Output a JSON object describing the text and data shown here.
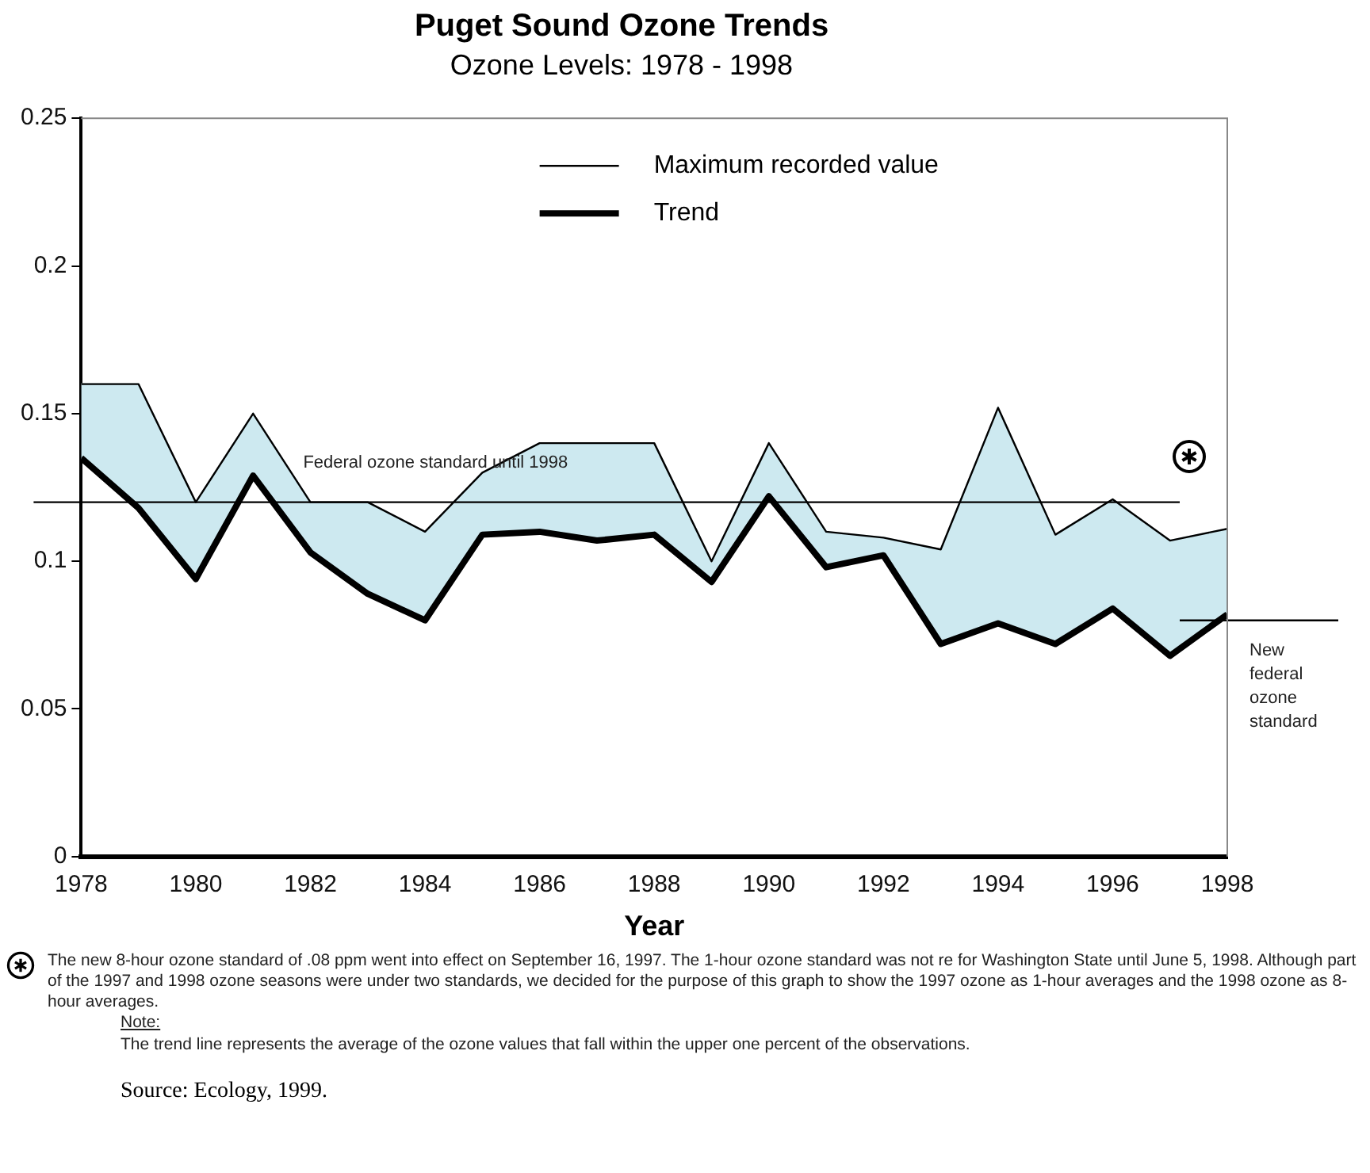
{
  "chart_data": {
    "type": "line",
    "title": "Puget Sound Ozone Trends",
    "subtitle": "Ozone Levels: 1978 - 1998",
    "xlabel": "Year",
    "x": [
      1978,
      1979,
      1980,
      1981,
      1982,
      1983,
      1984,
      1985,
      1986,
      1987,
      1988,
      1989,
      1990,
      1991,
      1992,
      1993,
      1994,
      1995,
      1996,
      1997,
      1998
    ],
    "xlim": [
      1978,
      1998
    ],
    "xticks": [
      1978,
      1980,
      1982,
      1984,
      1986,
      1988,
      1990,
      1992,
      1994,
      1996,
      1998
    ],
    "ylim": [
      0,
      0.25
    ],
    "yticks": [
      0,
      0.05,
      0.1,
      0.15,
      0.2,
      0.25
    ],
    "series": [
      {
        "name": "Maximum recorded value",
        "color": "#000000",
        "values": [
          0.16,
          0.16,
          0.12,
          0.15,
          0.12,
          0.12,
          0.11,
          0.13,
          0.14,
          0.14,
          0.14,
          0.1,
          0.14,
          0.11,
          0.108,
          0.104,
          0.152,
          0.109,
          0.121,
          0.107,
          0.111
        ],
        "upper": [
          0.16,
          0.16,
          0.12,
          0.15,
          0.12,
          0.12,
          0.11,
          0.13,
          0.14,
          0.14,
          0.14,
          0.1,
          0.14,
          0.11,
          0.108,
          0.104,
          0.152,
          0.109,
          0.121,
          0.107,
          0.111
        ],
        "lower": [
          0.135,
          0.118,
          0.094,
          0.129,
          0.103,
          0.089,
          0.08,
          0.109,
          0.11,
          0.107,
          0.109,
          0.093,
          0.122,
          0.098,
          0.102,
          0.072,
          0.079,
          0.072,
          0.084,
          0.068,
          0.082
        ]
      },
      {
        "name": "Trend",
        "color": "#000000",
        "values": [
          0.135,
          0.118,
          0.094,
          0.129,
          0.103,
          0.089,
          0.08,
          0.109,
          0.11,
          0.107,
          0.109,
          0.093,
          0.122,
          0.098,
          0.102,
          0.072,
          0.079,
          0.072,
          0.084,
          0.068,
          0.082
        ]
      }
    ],
    "ref_lines": [
      {
        "axis": "y",
        "value": 0.12,
        "label": "Federal ozone standard until 1998",
        "color": "#000000"
      },
      {
        "axis": "y",
        "value": 0.08,
        "label": "New federal ozone standard",
        "color": "#000000"
      }
    ],
    "legend": "top",
    "grid": false,
    "marker": "none",
    "annotations": [
      "The new 8-hour ozone standard of .08 ppm went into effect on September 16, 1997.  The 1-hour ozone standard was not re for Washington State until June 5, 1998.  Although part of the 1997 and 1998 ozone seasons were under two standards, we decided for the purpose of this graph to show the 1997 ozone as 1-hour averages and the 1998 ozone as 8-hour averages.",
      "Note:",
      "The trend line represents the average of the ozone values that fall within the upper one percent of the observations.",
      "Source:  Ecology, 1999."
    ]
  }
}
